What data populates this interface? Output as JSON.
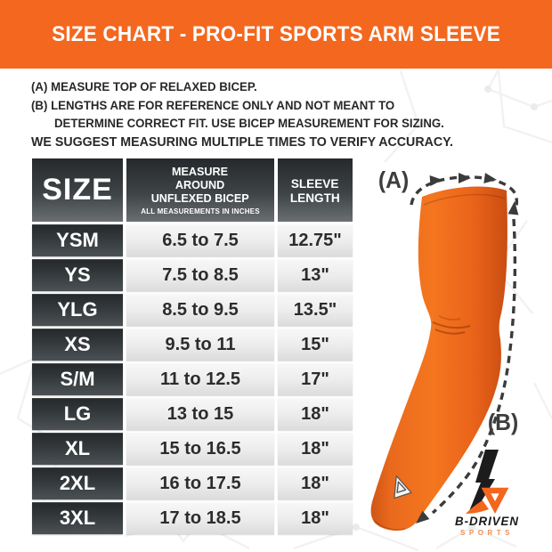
{
  "banner": {
    "title": "SIZE CHART - PRO-FIT SPORTS ARM SLEEVE",
    "bg_color": "#F4671E"
  },
  "notes": {
    "a_prefix": "(A)",
    "a_text": "MEASURE TOP OF RELAXED BICEP.",
    "b_prefix": "(B)",
    "b_text_line1": "LENGTHS ARE FOR REFERENCE ONLY AND NOT MEANT TO",
    "b_text_line2": "DETERMINE CORRECT FIT. USE BICEP MEASUREMENT FOR SIZING.",
    "footer": "WE SUGGEST MEASURING MULTIPLE TIMES TO VERIFY ACCURACY."
  },
  "table": {
    "header": {
      "size": "SIZE",
      "bicep_l1": "MEASURE",
      "bicep_l2": "AROUND",
      "bicep_l3": "UNFLEXED BICEP",
      "bicep_note": "ALL MEASUREMENTS IN INCHES",
      "sleeve_l1": "SLEEVE",
      "sleeve_l2": "LENGTH"
    },
    "rows": [
      {
        "size": "YSM",
        "bicep": "6.5 to 7.5",
        "length": "12.75\""
      },
      {
        "size": "YS",
        "bicep": "7.5 to 8.5",
        "length": "13\""
      },
      {
        "size": "YLG",
        "bicep": "8.5 to 9.5",
        "length": "13.5\""
      },
      {
        "size": "XS",
        "bicep": "9.5 to 11",
        "length": "15\""
      },
      {
        "size": "S/M",
        "bicep": "11 to 12.5",
        "length": "17\""
      },
      {
        "size": "LG",
        "bicep": "13 to 15",
        "length": "18\""
      },
      {
        "size": "XL",
        "bicep": "15 to 16.5",
        "length": "18\""
      },
      {
        "size": "2XL",
        "bicep": "16 to 17.5",
        "length": "18\""
      },
      {
        "size": "3XL",
        "bicep": "17 to 18.5",
        "length": "18\""
      }
    ]
  },
  "diagram": {
    "label_a": "(A)",
    "label_b": "(B)",
    "sleeve_color": "#F06A1E",
    "dash_color": "#3B3B3B"
  },
  "logo": {
    "brand": "B-DRIVEN",
    "sub": "SPORTS"
  },
  "chart_data": {
    "type": "table",
    "title": "SIZE CHART - PRO-FIT SPORTS ARM SLEEVE",
    "columns": [
      "SIZE",
      "MEASURE AROUND UNFLEXED BICEP (ALL MEASUREMENTS IN INCHES)",
      "SLEEVE LENGTH"
    ],
    "rows": [
      [
        "YSM",
        "6.5 to 7.5",
        "12.75\""
      ],
      [
        "YS",
        "7.5 to 8.5",
        "13\""
      ],
      [
        "YLG",
        "8.5 to 9.5",
        "13.5\""
      ],
      [
        "XS",
        "9.5 to 11",
        "15\""
      ],
      [
        "S/M",
        "11 to 12.5",
        "17\""
      ],
      [
        "LG",
        "13 to 15",
        "18\""
      ],
      [
        "XL",
        "15 to 16.5",
        "18\""
      ],
      [
        "2XL",
        "16 to 17.5",
        "18\""
      ],
      [
        "3XL",
        "17 to 18.5",
        "18\""
      ]
    ],
    "annotations": [
      "(A) bicep circumference measurement arc",
      "(B) sleeve length measurement line"
    ]
  }
}
